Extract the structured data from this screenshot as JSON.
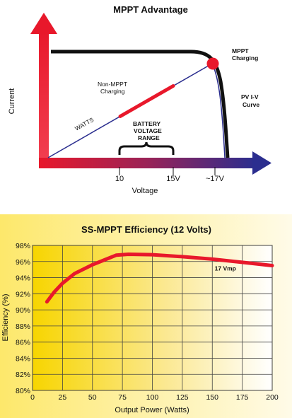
{
  "chart_data": [
    {
      "type": "line",
      "title": "MPPT Advantage",
      "xlabel": "Voltage",
      "ylabel": "Current",
      "x_ticks": [
        "10",
        "15V",
        "~17V"
      ],
      "annotations": {
        "mppt": [
          "MPPT",
          "Charging"
        ],
        "non_mppt": [
          "Non-MPPT",
          "Charging"
        ],
        "pv_curve": [
          "PV I-V",
          "Curve"
        ],
        "battery_range": [
          "BATTERY",
          "VOLTAGE",
          "RANGE"
        ],
        "watts": "WATTS"
      },
      "colors": {
        "axis_red": "#e8182b",
        "axis_navy": "#2b2e8f",
        "curve": "#111111",
        "marker": "#e8182b"
      }
    },
    {
      "type": "line",
      "title": "SS-MPPT Efficiency (12 Volts)",
      "xlabel": "Output Power (Watts)",
      "ylabel": "Efficiency (%)",
      "x_ticks": [
        0,
        25,
        50,
        75,
        100,
        125,
        150,
        175,
        200
      ],
      "y_ticks": [
        "80%",
        "82%",
        "84%",
        "86%",
        "88%",
        "90%",
        "92%",
        "94%",
        "96%",
        "98%"
      ],
      "xlim": [
        0,
        200
      ],
      "ylim": [
        80,
        98
      ],
      "grid": true,
      "series": [
        {
          "name": "17 Vmp",
          "color": "#e8182b",
          "points": [
            [
              12,
              91.0
            ],
            [
              18,
              92.2
            ],
            [
              25,
              93.3
            ],
            [
              35,
              94.5
            ],
            [
              50,
              95.6
            ],
            [
              60,
              96.2
            ],
            [
              70,
              96.8
            ],
            [
              80,
              96.9
            ],
            [
              100,
              96.85
            ],
            [
              125,
              96.6
            ],
            [
              150,
              96.3
            ],
            [
              175,
              95.9
            ],
            [
              200,
              95.5
            ]
          ]
        }
      ]
    }
  ]
}
